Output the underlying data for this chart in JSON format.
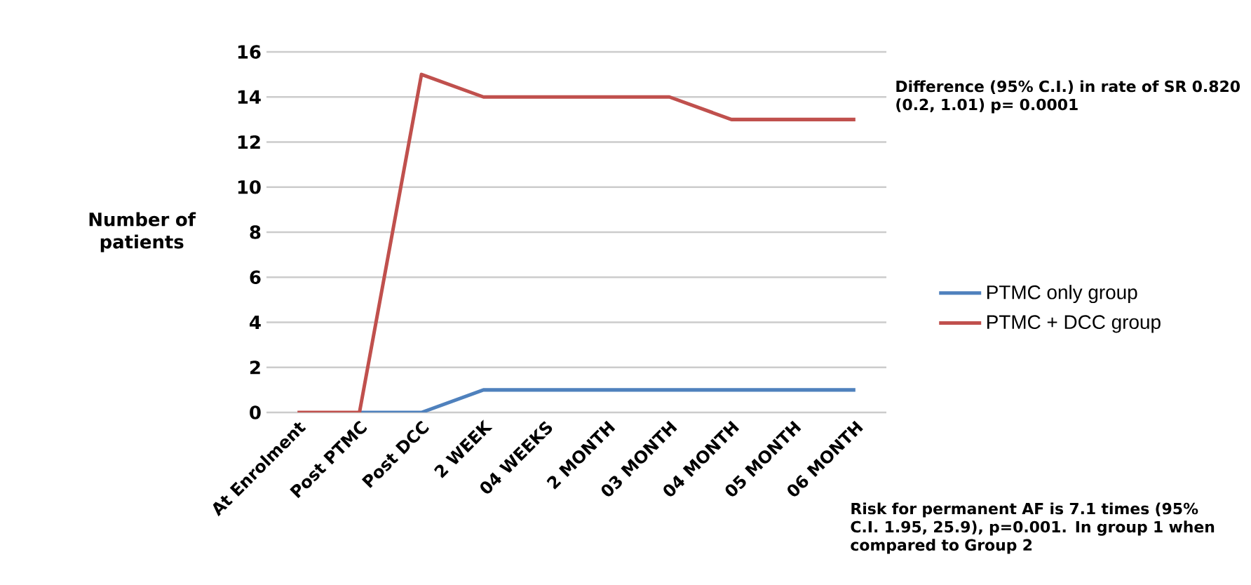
{
  "chart_data": {
    "type": "line",
    "categories": [
      "At Enrolment",
      "Post PTMC",
      "Post DCC",
      "2 WEEK",
      "04 WEEKS",
      "2 MONTH",
      "03 MONTH",
      "04 MONTH",
      "05 MONTH",
      "06 MONTH"
    ],
    "ylabel": "Number of patients",
    "ylim": [
      0,
      16
    ],
    "yticks": [
      0,
      2,
      4,
      6,
      8,
      10,
      12,
      14,
      16
    ],
    "series": [
      {
        "name": "PTMC only group",
        "color": "#4f81bd",
        "values": [
          null,
          0,
          0,
          1,
          1,
          1,
          1,
          1,
          1,
          1
        ]
      },
      {
        "name": "PTMC + DCC group",
        "color": "#c0504d",
        "values": [
          0,
          0,
          15,
          14,
          14,
          14,
          14,
          13,
          13,
          13
        ]
      }
    ],
    "annotations": [
      "Difference (95% C.I.) in rate of SR  0.820 (0.2, 1.01) p= 0.0001",
      "Risk for permanent AF is 7.1 times (95% C.I.  1.95, 25.9), p=0.001. In group 1 when compared to Group 2"
    ],
    "grid": "y",
    "legend": "right",
    "marker": "none",
    "line_style": "solid"
  }
}
